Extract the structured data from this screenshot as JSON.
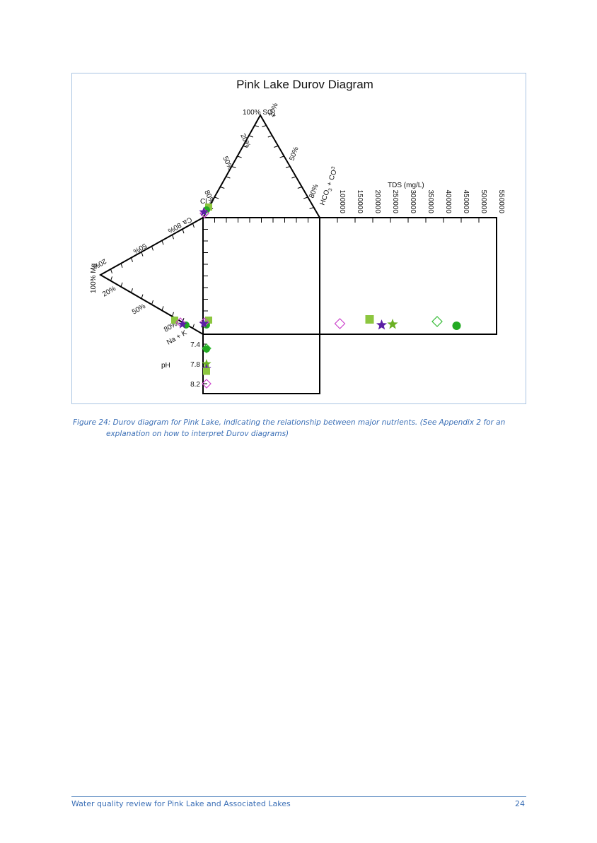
{
  "page": {
    "caption_line1": "Figure 24: Durov diagram for Pink Lake, indicating the relationship between major nutrients. (See Appendix 2 for an",
    "caption_line2": "explanation on how to interpret Durov diagrams)",
    "footer_title": "Water quality review for Pink Lake and Associated Lakes",
    "page_number": "24"
  },
  "chart_data": {
    "type": "scatter",
    "title": "Pink Lake Durov Diagram",
    "anion_triangle": {
      "apex_label": "100% SO",
      "apex_sub": "4",
      "left_labels": [
        "20%",
        "50%",
        "80%"
      ],
      "right_labels": [
        "20%",
        "50%",
        "80%"
      ],
      "cl_label": "Cl",
      "hco3_label": "HCO",
      "hco3_sub": "3",
      "hco3_tail": " + CO",
      "co3_sub": "3"
    },
    "cation_triangle": {
      "apex_label": "100% Mg",
      "upper_labels": [
        "20%",
        "50%",
        "80%"
      ],
      "lower_labels": [
        "20%",
        "50%",
        "80%"
      ],
      "ca_label": "Ca",
      "nak_label": "Na + K"
    },
    "tds_axis": {
      "label": "TDS (mg/L)",
      "ticks": [
        100000,
        150000,
        200000,
        250000,
        300000,
        350000,
        400000,
        450000,
        500000,
        550000
      ],
      "range": [
        50000,
        550000
      ]
    },
    "ph_axis": {
      "label": "pH",
      "ticks": [
        "7.4",
        "7.8",
        "8.2"
      ],
      "range": [
        7.2,
        8.4
      ]
    },
    "colors": {
      "green_square": "#8cc63f",
      "green_circle": "#22aa22",
      "purple_star": "#5b1fa5",
      "green_star": "#6ab023",
      "magenta_diamond": "#cc44cc",
      "green_diamond": "#33bb33"
    },
    "tds_points": [
      {
        "marker": "magenta_diamond",
        "tds": 107000
      },
      {
        "marker": "green_square",
        "tds": 191000
      },
      {
        "marker": "purple_star",
        "tds": 225000
      },
      {
        "marker": "green_star",
        "tds": 256000
      },
      {
        "marker": "green_diamond",
        "tds": 382000
      },
      {
        "marker": "green_circle",
        "tds": 437000
      }
    ],
    "ph_points": [
      {
        "marker": "green_circle",
        "ph": 7.5
      },
      {
        "marker": "green_star",
        "ph": 7.8
      },
      {
        "marker": "purple_star",
        "ph": 7.9
      },
      {
        "marker": "green_square",
        "ph": 7.95
      },
      {
        "marker": "magenta_diamond",
        "ph": 8.2
      }
    ]
  }
}
